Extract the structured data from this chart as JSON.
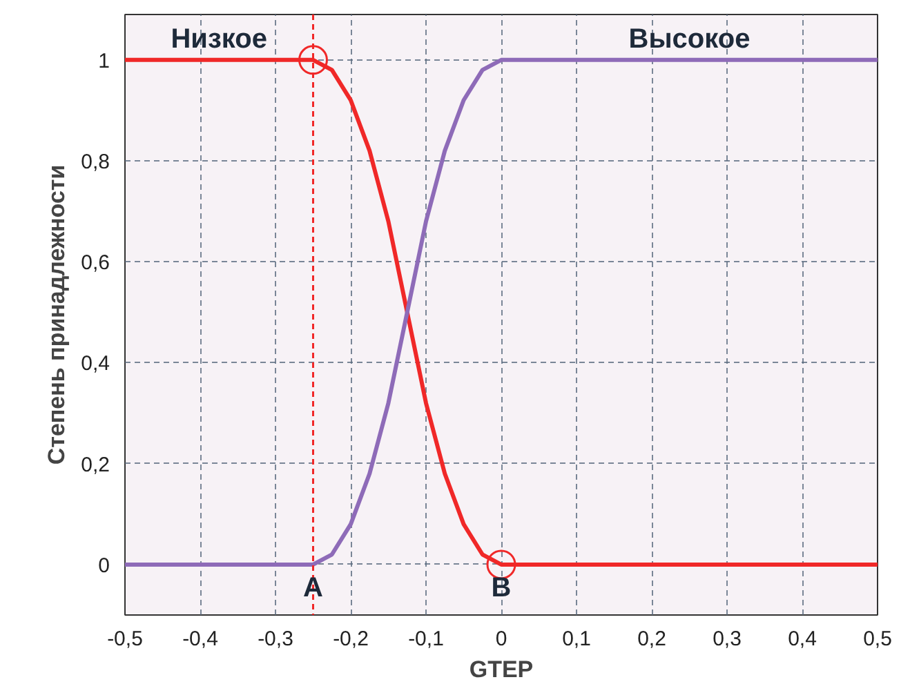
{
  "chart_data": {
    "type": "line",
    "xlabel": "GTEP",
    "ylabel": "Степень принадлежности",
    "x": [
      -0.5,
      -0.25,
      -0.225,
      -0.2,
      -0.175,
      -0.15,
      -0.125,
      -0.1,
      -0.075,
      -0.05,
      -0.025,
      0,
      0.5
    ],
    "series": [
      {
        "name": "Низкое",
        "color": "#f02828",
        "values": [
          1,
          1,
          0.98,
          0.92,
          0.82,
          0.68,
          0.5,
          0.32,
          0.18,
          0.08,
          0.02,
          0,
          0
        ]
      },
      {
        "name": "Высокое",
        "color": "#8e6bb8",
        "values": [
          0,
          0,
          0.02,
          0.08,
          0.18,
          0.32,
          0.5,
          0.68,
          0.82,
          0.92,
          0.98,
          1,
          1
        ]
      },
      {
        "type": "scatter",
        "marker": "circle",
        "color": "#f02828",
        "x": [
          -0.25,
          0
        ],
        "values": [
          1,
          0
        ]
      }
    ],
    "xlim": [
      -0.5,
      0.5
    ],
    "ylim": [
      -0.1,
      1.09
    ],
    "xticks": [
      {
        "value": -0.5,
        "label": "-0,5"
      },
      {
        "value": -0.4,
        "label": "-0,4"
      },
      {
        "value": -0.3,
        "label": "-0,3"
      },
      {
        "value": -0.2,
        "label": "-0,2"
      },
      {
        "value": -0.1,
        "label": "-0,1"
      },
      0,
      {
        "value": 0.1,
        "label": "0,1"
      },
      {
        "value": 0.2,
        "label": "0,2"
      },
      {
        "value": 0.3,
        "label": "0,3"
      },
      {
        "value": 0.4,
        "label": "0,4"
      },
      {
        "value": 0.5,
        "label": "0,5"
      }
    ],
    "yticks": [
      0,
      {
        "value": 0.2,
        "label": "0,2"
      },
      {
        "value": 0.4,
        "label": "0,4"
      },
      {
        "value": 0.6,
        "label": "0,6"
      },
      {
        "value": 0.8,
        "label": "0,8"
      },
      1
    ],
    "grid": true,
    "line_style": "solid",
    "ref_lines": [
      {
        "axis": "x",
        "value": -0.25,
        "color": "#f02828",
        "line_style": "dashed"
      }
    ],
    "annotations": [
      {
        "text": "A",
        "x": -0.25,
        "y": 0
      },
      {
        "text": "B",
        "x": 0,
        "y": 0
      }
    ]
  }
}
